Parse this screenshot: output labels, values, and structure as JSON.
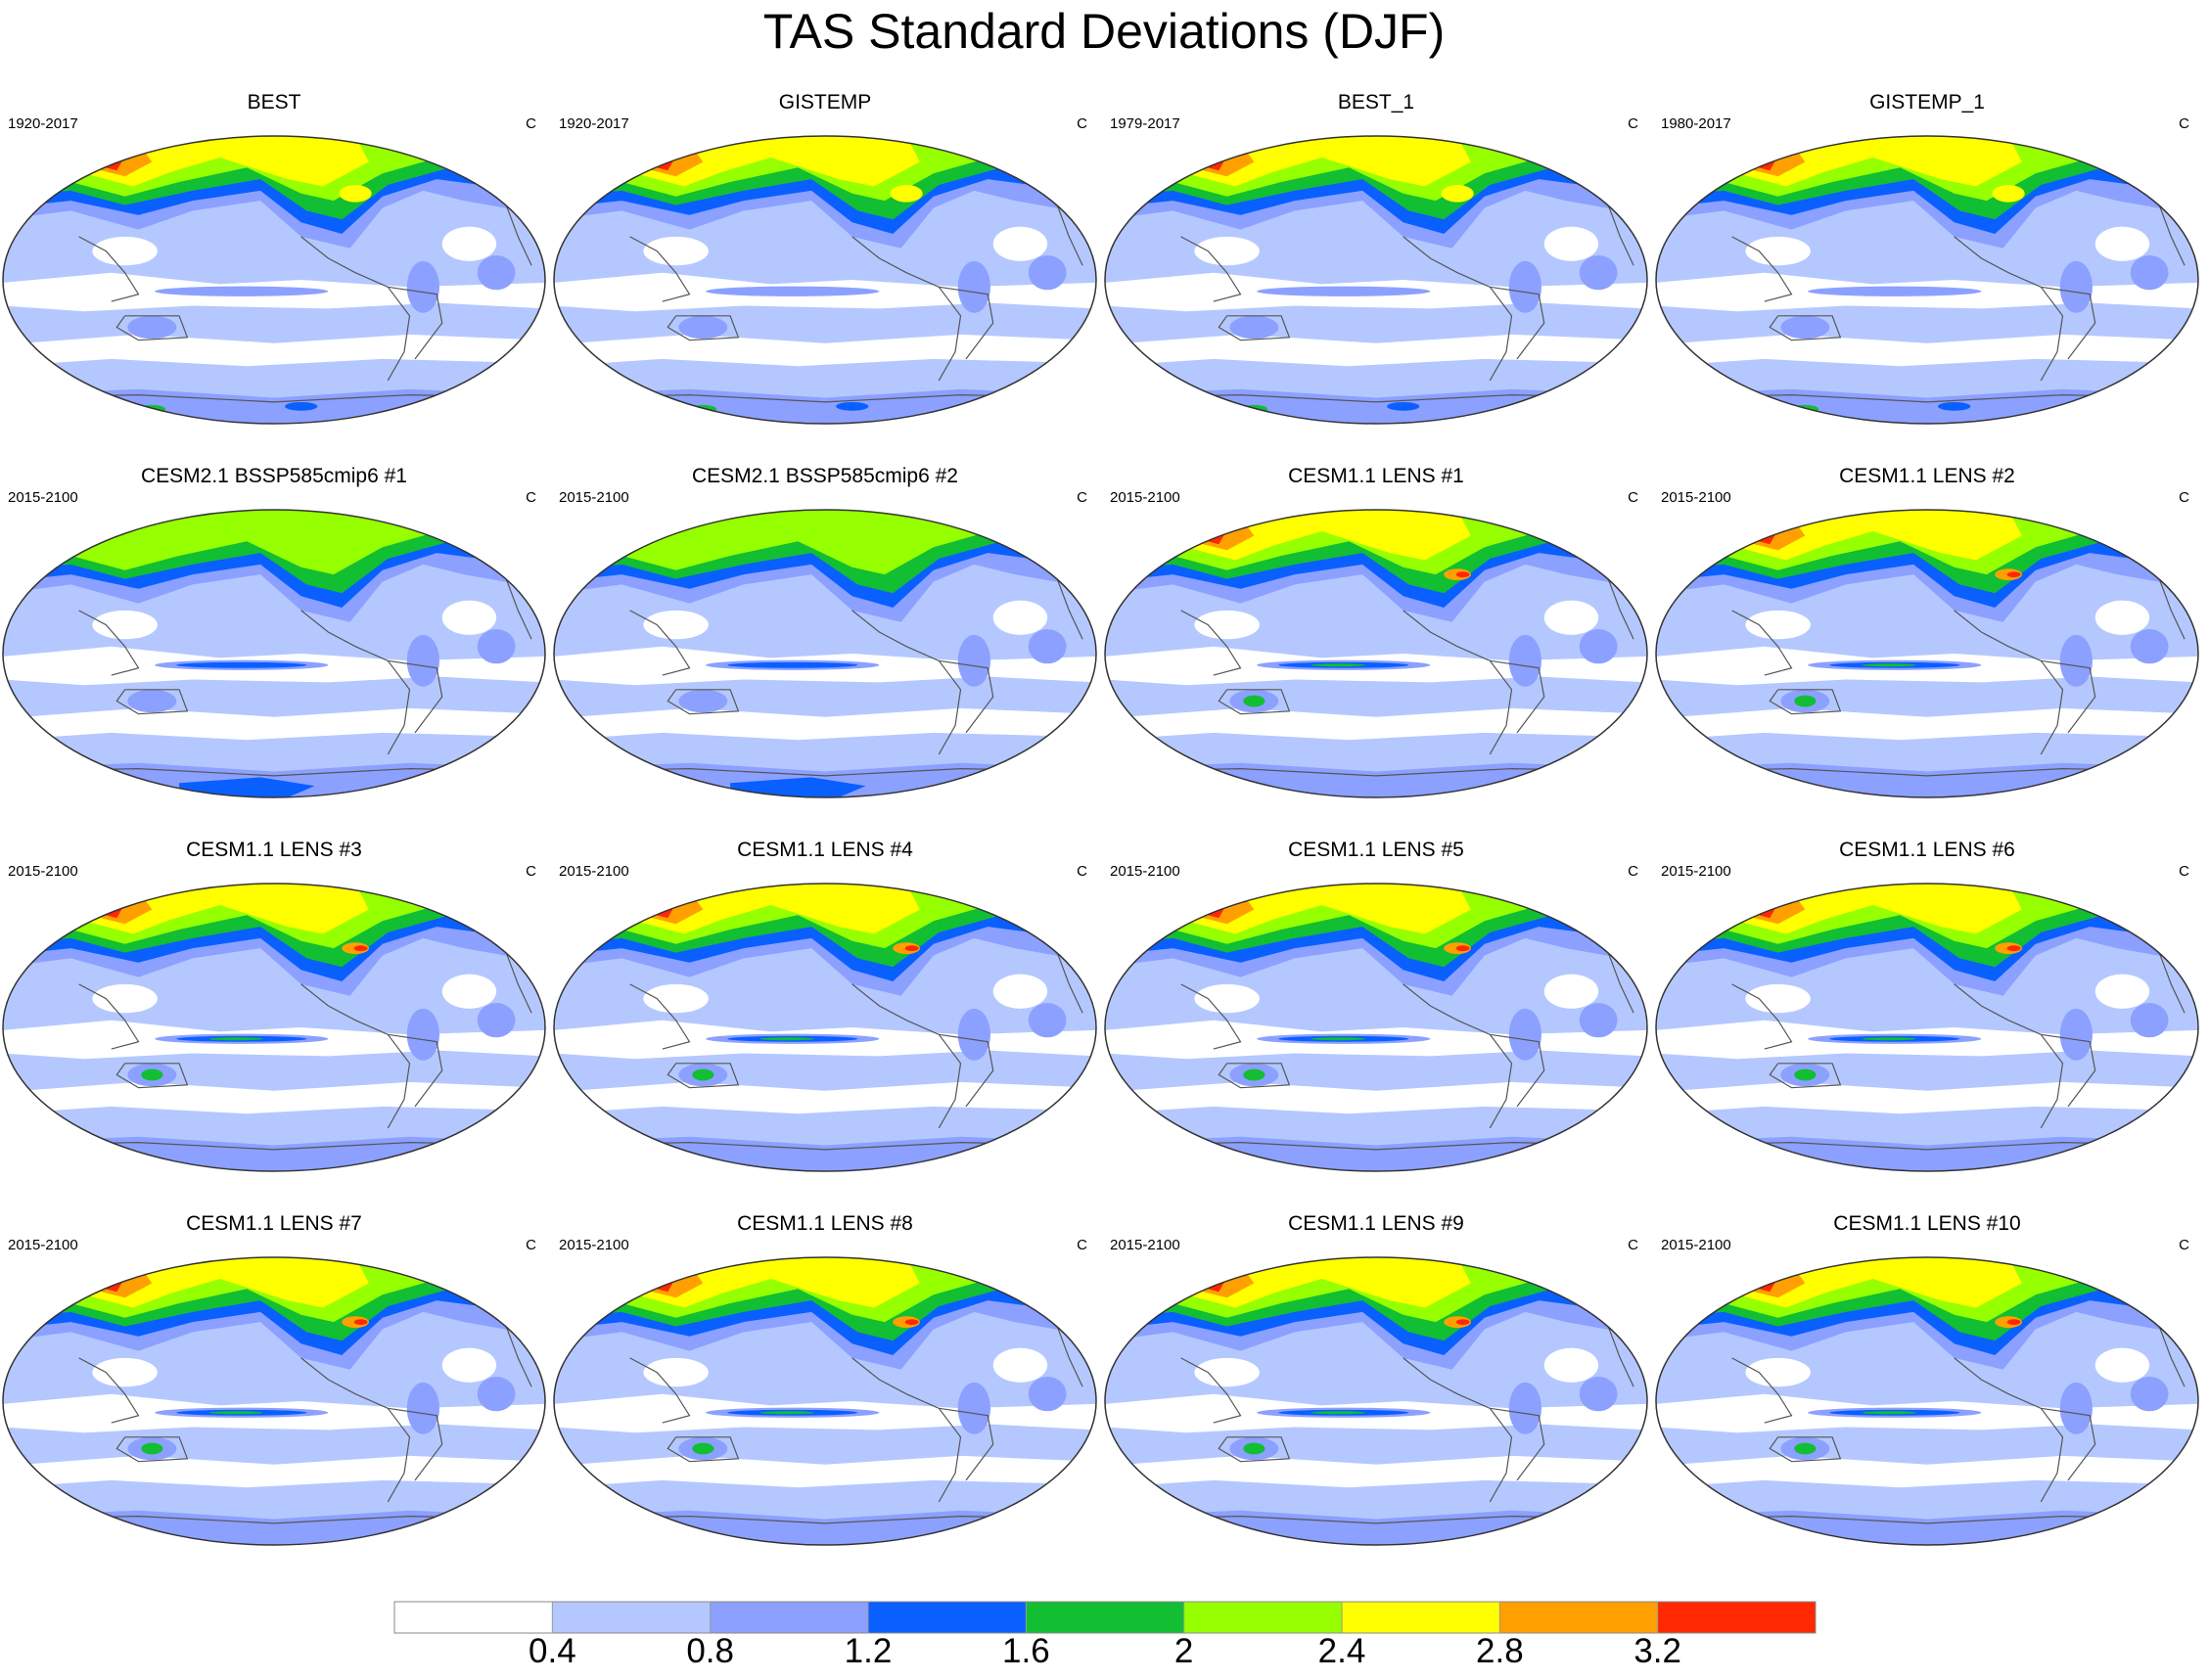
{
  "title": "TAS Standard Deviations (DJF)",
  "legend": {
    "colors": [
      "#ffffff",
      "#b4c8ff",
      "#8ca0ff",
      "#0a5fff",
      "#12be32",
      "#96ff00",
      "#ffff00",
      "#ffa000",
      "#ff2800"
    ],
    "labels": [
      "0.4",
      "0.8",
      "1.2",
      "1.6",
      "2",
      "2.4",
      "2.8",
      "3.2"
    ]
  },
  "panels": [
    {
      "title": "BEST",
      "period": "1920-2017",
      "units": "C",
      "variant": "obs"
    },
    {
      "title": "GISTEMP",
      "period": "1920-2017",
      "units": "C",
      "variant": "obs"
    },
    {
      "title": "BEST_1",
      "period": "1979-2017",
      "units": "C",
      "variant": "obs"
    },
    {
      "title": "GISTEMP_1",
      "period": "1980-2017",
      "units": "C",
      "variant": "obs"
    },
    {
      "title": "CESM2.1 BSSP585cmip6 #1",
      "period": "2015-2100",
      "units": "C",
      "variant": "cesm2"
    },
    {
      "title": "CESM2.1 BSSP585cmip6 #2",
      "period": "2015-2100",
      "units": "C",
      "variant": "cesm2"
    },
    {
      "title": "CESM1.1 LENS #1",
      "period": "2015-2100",
      "units": "C",
      "variant": "lens"
    },
    {
      "title": "CESM1.1 LENS #2",
      "period": "2015-2100",
      "units": "C",
      "variant": "lens"
    },
    {
      "title": "CESM1.1 LENS #3",
      "period": "2015-2100",
      "units": "C",
      "variant": "lens"
    },
    {
      "title": "CESM1.1 LENS #4",
      "period": "2015-2100",
      "units": "C",
      "variant": "lens"
    },
    {
      "title": "CESM1.1 LENS #5",
      "period": "2015-2100",
      "units": "C",
      "variant": "lens"
    },
    {
      "title": "CESM1.1 LENS #6",
      "period": "2015-2100",
      "units": "C",
      "variant": "lens"
    },
    {
      "title": "CESM1.1 LENS #7",
      "period": "2015-2100",
      "units": "C",
      "variant": "lens"
    },
    {
      "title": "CESM1.1 LENS #8",
      "period": "2015-2100",
      "units": "C",
      "variant": "lens"
    },
    {
      "title": "CESM1.1 LENS #9",
      "period": "2015-2100",
      "units": "C",
      "variant": "lens"
    },
    {
      "title": "CESM1.1 LENS #10",
      "period": "2015-2100",
      "units": "C",
      "variant": "lens"
    }
  ]
}
